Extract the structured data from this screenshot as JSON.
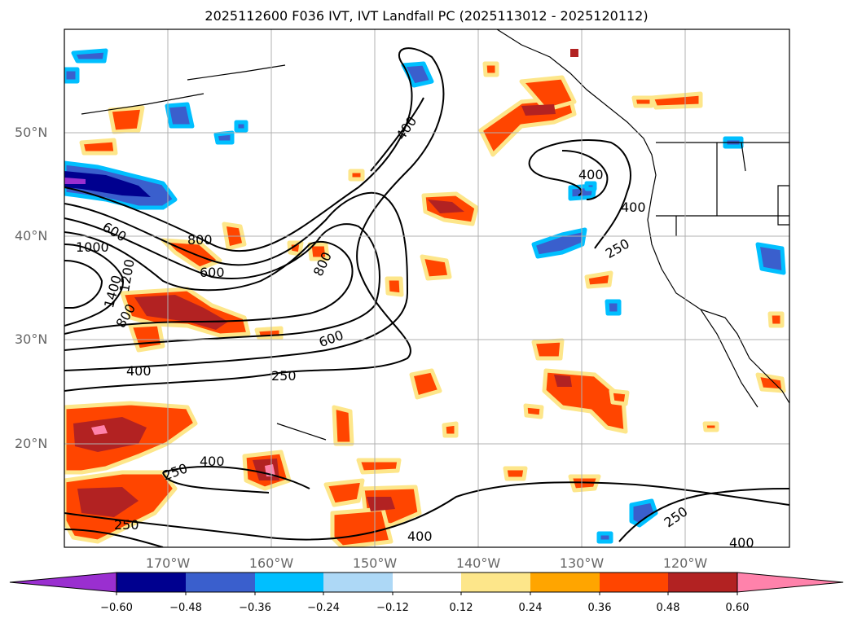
{
  "title": "2025112600 F036 IVT, IVT Landfall PC (2025113012 - 2025120112)",
  "lat_labels": [
    "50°N",
    "40°N",
    "30°N",
    "20°N"
  ],
  "lon_labels": [
    "170°W",
    "160°W",
    "150°W",
    "140°W",
    "130°W",
    "120°W"
  ],
  "contour_labels": [
    "400",
    "400",
    "400",
    "400",
    "400",
    "400",
    "400",
    "600",
    "600",
    "600",
    "800",
    "800",
    "800",
    "1000",
    "1400",
    "1200",
    "250",
    "250",
    "250",
    "250",
    "250"
  ],
  "colorbar": {
    "ticks": [
      "−0.60",
      "−0.48",
      "−0.36",
      "−0.24",
      "−0.12",
      "0.12",
      "0.24",
      "0.36",
      "0.48",
      "0.60"
    ],
    "colors": {
      "lt_neg060": "#9a2fd0",
      "neg060_048": "#00008f",
      "neg048_036": "#3a5fcd",
      "neg036_024": "#00bfff",
      "neg024_012": "#add8f6",
      "neutral": "#ffffff",
      "pos012_024": "#fde68a",
      "pos024_036": "#ffa500",
      "pos036_048": "#ff4500",
      "pos048_060": "#b22222",
      "gt_pos060": "#ff82ab"
    }
  },
  "map_extent": {
    "lon_min": -180,
    "lon_max": -110,
    "lat_min": 10,
    "lat_max": 60
  }
}
